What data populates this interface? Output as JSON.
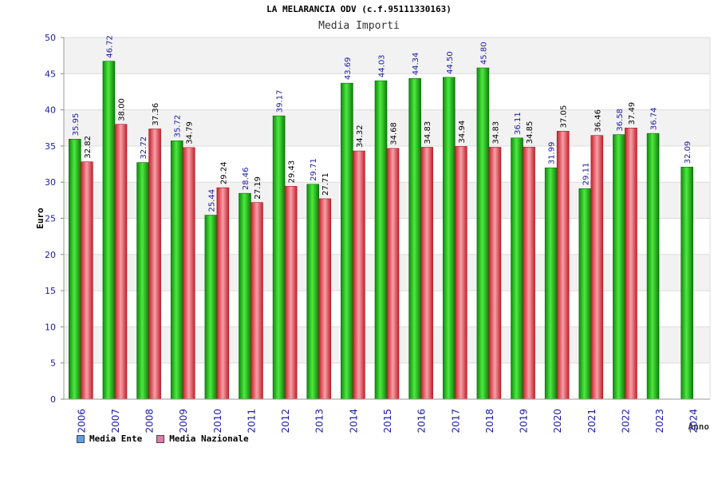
{
  "title": "LA MELARANCIA ODV (c.f.95111330163)",
  "subtitle": "Media Importi",
  "chart_data": {
    "type": "bar",
    "xlabel": "Anno",
    "ylabel": "Euro",
    "ylim": [
      0,
      50
    ],
    "yticks": [
      0,
      5,
      10,
      15,
      20,
      25,
      30,
      35,
      40,
      45,
      50
    ],
    "categories": [
      "2006",
      "2007",
      "2008",
      "2009",
      "2010",
      "2011",
      "2012",
      "2013",
      "2014",
      "2015",
      "2016",
      "2017",
      "2018",
      "2019",
      "2020",
      "2021",
      "2022",
      "2023",
      "2024"
    ],
    "series": [
      {
        "name": "Media Ente",
        "color": "#22c41a",
        "legend_color": "#5da0e8",
        "values": [
          35.95,
          46.72,
          32.72,
          35.72,
          25.44,
          28.46,
          39.17,
          29.71,
          43.69,
          44.03,
          44.34,
          44.5,
          45.8,
          36.11,
          31.99,
          29.11,
          36.58,
          36.74,
          32.09
        ],
        "labels": [
          "35.95",
          "46.72",
          "32.72",
          "35.72",
          "25.44",
          "28.46",
          "39.17",
          "29.71",
          "43.69",
          "44.03",
          "44.34",
          "44.50",
          "45.80",
          "36.11",
          "31.99",
          "29.11",
          "36.58",
          "36.74",
          "32.09"
        ]
      },
      {
        "name": "Media Nazionale",
        "color": "#e8404a",
        "legend_color": "#e07aa8",
        "values": [
          32.82,
          38.0,
          37.36,
          34.79,
          29.24,
          27.19,
          29.43,
          27.71,
          34.32,
          34.68,
          34.83,
          34.94,
          34.83,
          34.85,
          37.05,
          36.46,
          37.49,
          null,
          null
        ],
        "labels": [
          "32.82",
          "38.00",
          "37.36",
          "34.79",
          "29.24",
          "27.19",
          "29.43",
          "27.71",
          "34.32",
          "34.68",
          "34.83",
          "34.94",
          "34.83",
          "34.85",
          "37.05",
          "36.46",
          "37.49",
          null,
          null
        ]
      }
    ],
    "grid": true,
    "legend_position": "bottom-left"
  }
}
